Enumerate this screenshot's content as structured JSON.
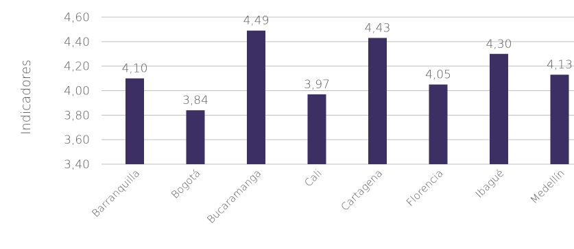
{
  "chart_data": {
    "type": "bar",
    "ylabel": "Indicadores",
    "ylim": [
      3.4,
      4.6
    ],
    "yticks": [
      "3,40",
      "3,60",
      "3,80",
      "4,00",
      "4,20",
      "4,40",
      "4,60"
    ],
    "grid": true,
    "categories": [
      "Barranquilla",
      "Bogotá",
      "Bucaramanga",
      "Cali",
      "Cartagena",
      "Florencia",
      "Ibagué",
      "Medellín"
    ],
    "values": [
      4.1,
      3.84,
      4.49,
      3.97,
      4.43,
      4.05,
      4.3,
      4.13
    ],
    "value_labels": [
      "4,10",
      "3,84",
      "4,49",
      "3,97",
      "4,43",
      "4,05",
      "4,30",
      "4,13"
    ],
    "bar_color": "#3b2f63"
  }
}
